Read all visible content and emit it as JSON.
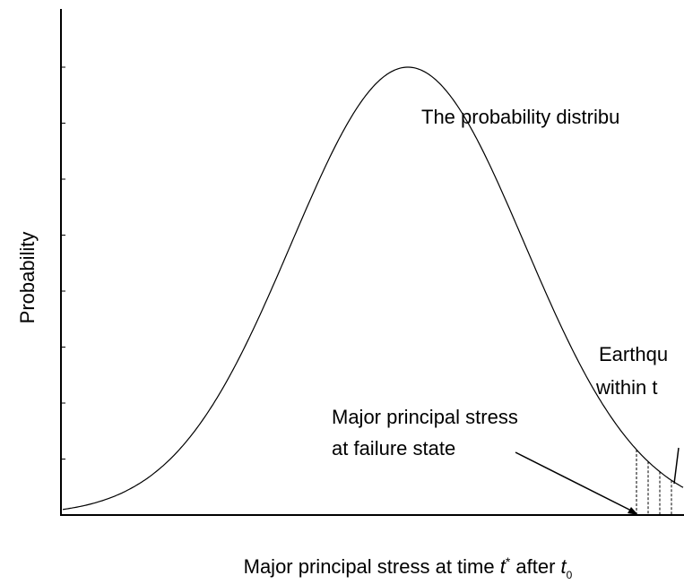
{
  "y_axis_label": "Probability",
  "x_axis_label": {
    "parts": [
      "Major principal stress at time ",
      "t",
      "*",
      " after ",
      "t",
      "0"
    ]
  },
  "annotations": {
    "distribution": "The probability distribu",
    "earthquake": [
      "Earthqu",
      "within t"
    ],
    "failure": [
      "Major principal stress",
      "at failure state"
    ]
  }
}
